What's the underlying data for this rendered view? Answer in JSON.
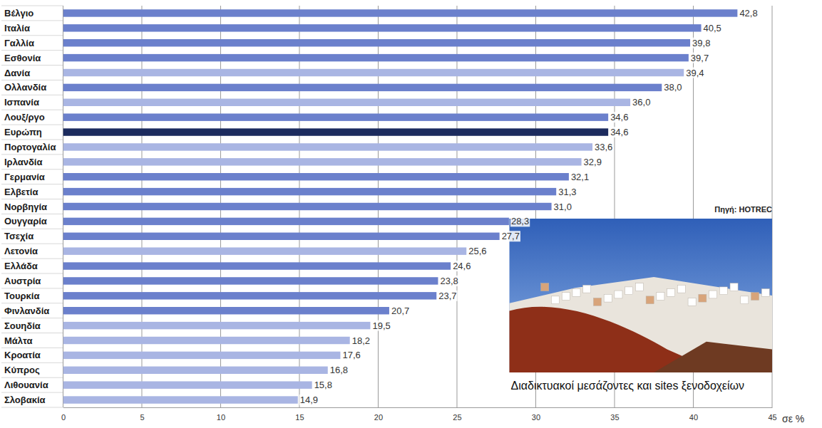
{
  "chart_data": {
    "type": "bar",
    "orientation": "horizontal",
    "categories": [
      "Βέλγιο",
      "Ιταλία",
      "Γαλλία",
      "Εσθονία",
      "Δανία",
      "Ολλανδία",
      "Ισπανία",
      "Λουξ/ργο",
      "Ευρώπη",
      "Πορτογαλία",
      "Ιρλανδία",
      "Γερμανία",
      "Ελβετία",
      "Νορβηγία",
      "Ουγγαρία",
      "Τσεχία",
      "Λετονία",
      "Ελλάδα",
      "Αυστρία",
      "Τουρκία",
      "Φινλανδία",
      "Σουηδία",
      "Μάλτα",
      "Κροατία",
      "Κύπρος",
      "Λιθουανία",
      "Σλοβακία"
    ],
    "values": [
      42.8,
      40.5,
      39.8,
      39.7,
      39.4,
      38.0,
      36.0,
      34.6,
      34.6,
      33.6,
      32.9,
      32.1,
      31.3,
      31.0,
      28.3,
      27.7,
      25.6,
      24.6,
      23.8,
      23.7,
      20.7,
      19.5,
      18.2,
      17.6,
      16.8,
      15.8,
      14.9
    ],
    "value_labels": [
      "42,8",
      "40,5",
      "39,8",
      "39,7",
      "39,4",
      "38,0",
      "36,0",
      "34,6",
      "34,6",
      "33,6",
      "32,9",
      "32,1",
      "31,3",
      "31,0",
      "28,3",
      "27,7",
      "25,6",
      "24,6",
      "23,8",
      "23,7",
      "20,7",
      "19,5",
      "18,2",
      "17,6",
      "16,8",
      "15,8",
      "14,9"
    ],
    "colors": [
      "#6b80cc",
      "#6b80cc",
      "#6b80cc",
      "#6b80cc",
      "#a9b5e3",
      "#6b80cc",
      "#a9b5e3",
      "#6b80cc",
      "#1c2b5e",
      "#a9b5e3",
      "#a9b5e3",
      "#6b80cc",
      "#6b80cc",
      "#6b80cc",
      "#6b80cc",
      "#6b80cc",
      "#a9b5e3",
      "#6b80cc",
      "#6b80cc",
      "#6b80cc",
      "#6b80cc",
      "#a9b5e3",
      "#a9b5e3",
      "#a9b5e3",
      "#a9b5e3",
      "#a9b5e3",
      "#a9b5e3"
    ],
    "xlim": [
      0,
      45
    ],
    "xticks": [
      0,
      5,
      10,
      15,
      20,
      25,
      30,
      35,
      40,
      45
    ],
    "xlabel": "σε %",
    "grid": true,
    "data_labels": true,
    "annotations": [
      "Πηγή: HOTREC",
      "Διαδικτυακοί μεσάζοντες και sites ξενοδοχείων"
    ]
  }
}
